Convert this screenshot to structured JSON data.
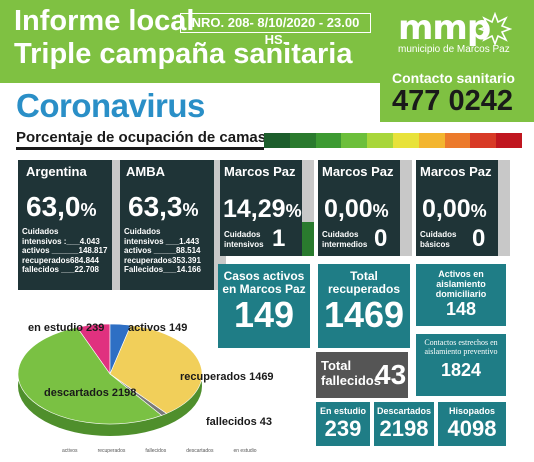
{
  "header": {
    "line1": "Informe local",
    "report_no": "NRO. 208- 8/10/2020 - 23.00 HS.",
    "line2": "Triple campaña sanitaria",
    "logo": "mmp",
    "logo_sub": "municipio de Marcos Paz",
    "contact_label": "Contacto sanitario",
    "contact_number": "477 0242"
  },
  "section_title": "Coronavirus",
  "occupancy_title": "Porcentaje de ocupación de camas",
  "scale_colors": [
    "#1d5e2c",
    "#2a7a2e",
    "#3d9a32",
    "#6cbf3b",
    "#a8d63a",
    "#e8e23a",
    "#f3b52f",
    "#ec7a2b",
    "#d83a26",
    "#c0161f"
  ],
  "regions": [
    {
      "name": "Argentina",
      "pct_num": "63,0",
      "pct_sym": "%",
      "details": [
        "Cuidados",
        "intensivos :___4.043",
        "activos ______148.817",
        "recuperados684.844",
        "fallecidos ___22.708"
      ]
    },
    {
      "name": "AMBA",
      "pct_num": "63,3",
      "pct_sym": "%",
      "details": [
        "Cuidados",
        "intensivos ___1.443",
        "activos _____88.514",
        "recuperados353.391",
        "Fallecidos___14.166"
      ]
    }
  ],
  "local": [
    {
      "name": "Marcos Paz",
      "pct_num": "14,29",
      "pct_sym": "%",
      "label1": "Cuidados",
      "label2": "intensivos",
      "count": "1",
      "fill": 0.1429
    },
    {
      "name": "Marcos Paz",
      "pct_num": "0,00",
      "pct_sym": "%",
      "label1": "Cuidados",
      "label2": "intermedios",
      "count": "0",
      "fill": 0
    },
    {
      "name": "Marcos Paz",
      "pct_num": "0,00",
      "pct_sym": "%",
      "label1": "Cuidados",
      "label2": "básicos",
      "count": "0",
      "fill": 0
    }
  ],
  "stats": {
    "active_label": "Casos activos en Marcos Paz",
    "active_value": "149",
    "recovered_label": "Total recuperados",
    "recovered_value": "1469",
    "home_label": "Activos en aislamiento domiciliario",
    "home_value": "148",
    "contacts_label": "Contactos estrechos en aislamiento preventivo",
    "contacts_value": "1824",
    "deaths_label1": "Total",
    "deaths_label2": "fallecidos",
    "deaths_value": "43",
    "study_label": "En estudio",
    "study_value": "239",
    "discarded_label": "Descartados",
    "discarded_value": "2198",
    "swabs_label": "Hisopados",
    "swabs_value": "4098"
  },
  "chart_data": {
    "type": "pie",
    "categories": [
      "en estudio",
      "activos",
      "recuperados",
      "fallecidos",
      "descartados"
    ],
    "values": [
      239,
      149,
      1469,
      43,
      2198
    ],
    "labels": [
      "en estudio 239",
      "activos 149",
      "recuperados 1469",
      "fallecidos 43",
      "descartados 2198"
    ],
    "colors": [
      "#e0317f",
      "#2e6fc4",
      "#f1cf5a",
      "#7a7a7a",
      "#7ac143"
    ],
    "legend": [
      "activos",
      "recuperados",
      "fallecidos",
      "descartados",
      "en estudio"
    ],
    "legend_placement": "bottom"
  }
}
